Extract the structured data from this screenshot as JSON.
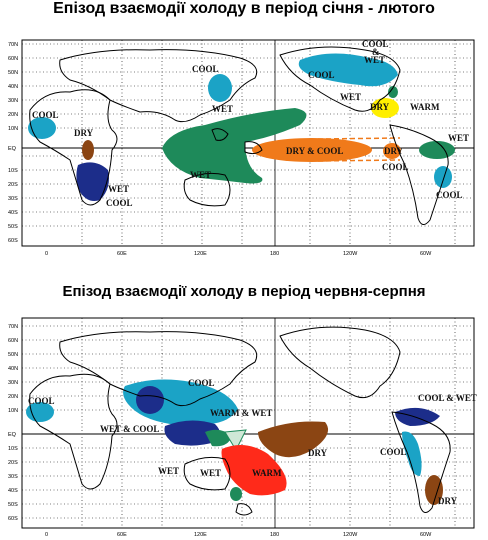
{
  "panels": [
    {
      "title": "Епізод взаємодії холоду в період січня - лютого",
      "y_ticks": [
        "70N",
        "60N",
        "50N",
        "40N",
        "30N",
        "20N",
        "10N",
        "EQ",
        "10S",
        "20S",
        "30S",
        "40S",
        "50S",
        "60S"
      ],
      "x_ticks": [
        "0",
        "60E",
        "120E",
        "180",
        "120W",
        "60W"
      ],
      "labels": {
        "cool_africa_w": "COOL",
        "dry_africa": "DRY",
        "wet_africa_s": "WET",
        "cool_africa_s": "COOL",
        "cool_japan": "COOL",
        "wet_pacific": "WET",
        "wet_australia": "WET",
        "dry_cool_pacific": "DRY & COOL",
        "cool_and": "COOL",
        "and_amp": "&",
        "wet_na": "WET",
        "cool_na": "COOL",
        "dry_gulf": "DRY",
        "warm_gulf": "WARM",
        "wet_na2": "WET",
        "dry_sa": "DRY",
        "cool_sa": "COOL",
        "wet_sa": "WET",
        "cool_sa_s": "COOL"
      }
    },
    {
      "title": "Епізод взаємодії холоду в період червня-серпня",
      "y_ticks": [
        "70N",
        "60N",
        "50N",
        "40N",
        "30N",
        "20N",
        "10N",
        "EQ",
        "10S",
        "20S",
        "30S",
        "40S",
        "50S",
        "60S"
      ],
      "x_ticks": [
        "0",
        "60E",
        "120E",
        "180",
        "120W",
        "60W"
      ],
      "labels": {
        "cool_africa": "COOL",
        "wet_cool": "WET & COOL",
        "cool_asia": "COOL",
        "warm_wet": "WARM & WET",
        "dry_pac": "DRY",
        "wet_indo": "WET",
        "wet_aus": "WET",
        "warm_aus": "WARM",
        "cool_wet_ca": "COOL & WET",
        "cool_sa": "COOL",
        "dry_sa": "DRY"
      }
    }
  ],
  "colors": {
    "cool": "#1ba3c6",
    "wet": "#1e8a5a",
    "dry": "#f07a1a",
    "warm": "#ffef00",
    "dry_dark": "#8b4513",
    "navy": "#1c2d8a",
    "warm_red": "#ff2a1a"
  }
}
